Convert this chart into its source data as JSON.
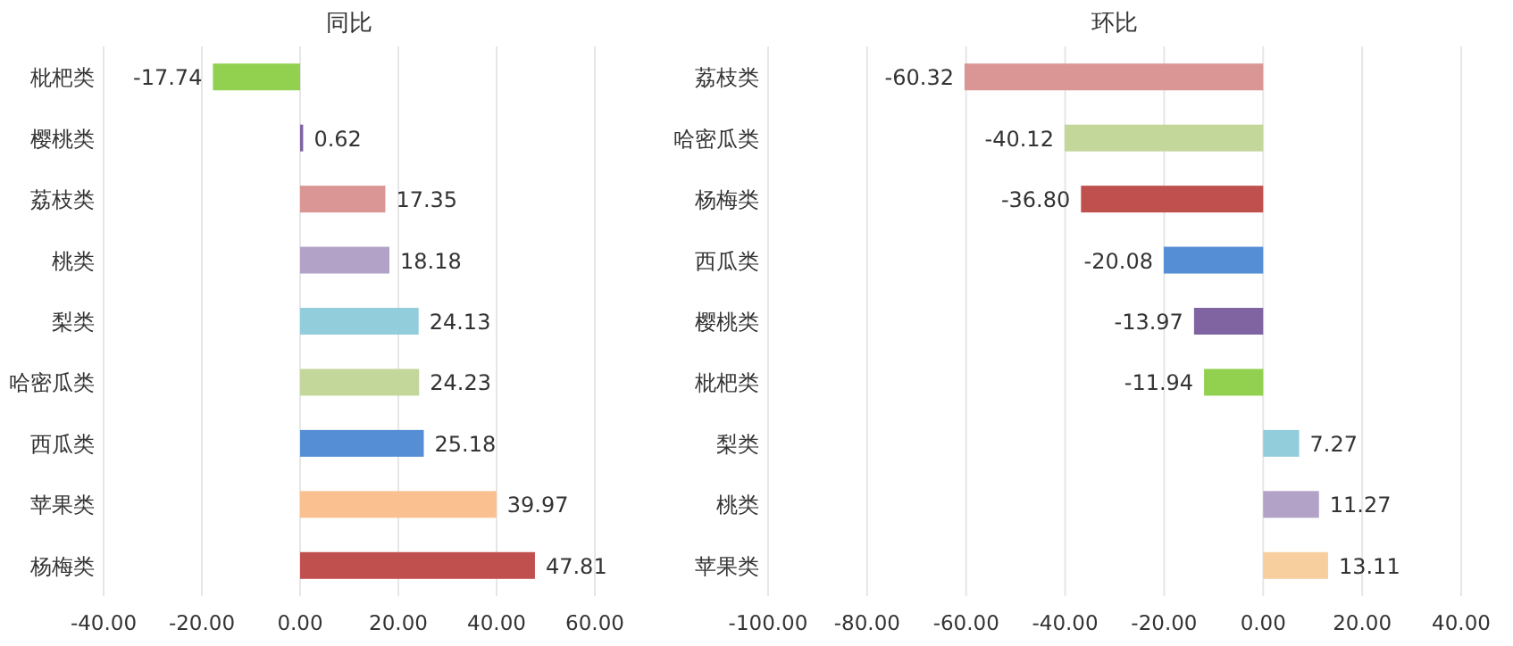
{
  "chart_data": [
    {
      "type": "bar",
      "orientation": "horizontal",
      "title": "同比",
      "categories": [
        "枇杷类",
        "樱桃类",
        "荔枝类",
        "桃类",
        "梨类",
        "哈密瓜类",
        "西瓜类",
        "苹果类",
        "杨梅类"
      ],
      "values": [
        -17.74,
        0.62,
        17.35,
        18.18,
        24.13,
        24.23,
        25.18,
        39.97,
        47.81
      ],
      "value_labels": [
        "-17.74",
        "0.62",
        "17.35",
        "18.18",
        "24.13",
        "24.23",
        "25.18",
        "39.97",
        "47.81"
      ],
      "colors": [
        "#92d050",
        "#8064a2",
        "#d99694",
        "#b3a2c7",
        "#92cddc",
        "#c4d79b",
        "#558ed5",
        "#fac090",
        "#c0504d"
      ],
      "xlim": [
        -40,
        60
      ],
      "xticks": [
        {
          "value": -40,
          "label": "-40.00"
        },
        {
          "value": -20,
          "label": "-20.00"
        },
        {
          "value": 0,
          "label": "0.00"
        },
        {
          "value": 20,
          "label": "20.00"
        },
        {
          "value": 40,
          "label": "40.00"
        },
        {
          "value": 60,
          "label": "60.00"
        }
      ],
      "grid": "x"
    },
    {
      "type": "bar",
      "orientation": "horizontal",
      "title": "环比",
      "categories": [
        "荔枝类",
        "哈密瓜类",
        "杨梅类",
        "西瓜类",
        "樱桃类",
        "枇杷类",
        "梨类",
        "桃类",
        "苹果类"
      ],
      "values": [
        -60.32,
        -40.12,
        -36.8,
        -20.08,
        -13.97,
        -11.94,
        7.27,
        11.27,
        13.11
      ],
      "value_labels": [
        "-60.32",
        "-40.12",
        "-36.80",
        "-20.08",
        "-13.97",
        "-11.94",
        "7.27",
        "11.27",
        "13.11"
      ],
      "colors": [
        "#d99694",
        "#c4d79b",
        "#c0504d",
        "#558ed5",
        "#8064a2",
        "#92d050",
        "#92cddc",
        "#b3a2c7",
        "#f7cf9f"
      ],
      "xlim": [
        -100,
        40
      ],
      "xticks": [
        {
          "value": -100,
          "label": "-100.00"
        },
        {
          "value": -80,
          "label": "-80.00"
        },
        {
          "value": -60,
          "label": "-60.00"
        },
        {
          "value": -40,
          "label": "-40.00"
        },
        {
          "value": -20,
          "label": "-20.00"
        },
        {
          "value": 0,
          "label": "0.00"
        },
        {
          "value": 20,
          "label": "20.00"
        },
        {
          "value": 40,
          "label": "40.00"
        }
      ],
      "grid": "x"
    }
  ]
}
